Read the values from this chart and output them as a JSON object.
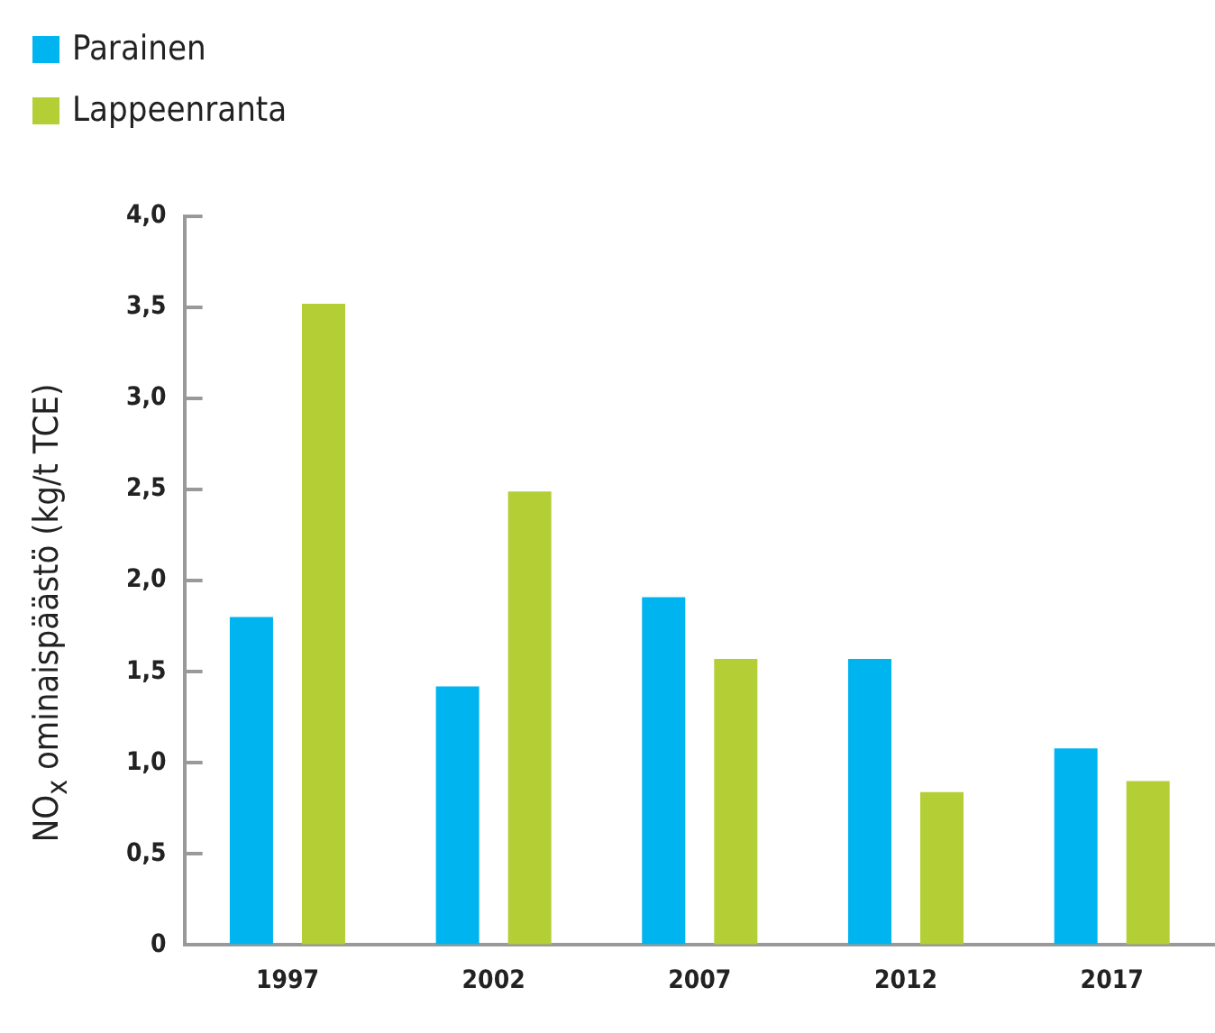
{
  "chart_data": {
    "type": "bar",
    "ylabel": "NO$_{x}$ ominaispäästö (kg/t TCE)",
    "categories": [
      "1997",
      "2002",
      "2007",
      "2012",
      "2017"
    ],
    "series": [
      {
        "name": "Parainen",
        "color": "#00b5ef",
        "values": [
          1.8,
          1.42,
          1.91,
          1.57,
          1.08
        ]
      },
      {
        "name": "Lappeenranta",
        "color": "#b3cf35",
        "values": [
          3.52,
          2.49,
          1.57,
          0.84,
          0.9
        ]
      }
    ],
    "ylim": [
      0,
      4
    ],
    "yticks": [
      {
        "value": 0,
        "label": "0"
      },
      {
        "value": 0.5,
        "label": "0,5"
      },
      {
        "value": 1,
        "label": "1,0"
      },
      {
        "value": 1.5,
        "label": "1,5"
      },
      {
        "value": 2,
        "label": "2,0"
      },
      {
        "value": 2.5,
        "label": "2,5"
      },
      {
        "value": 3,
        "label": "3,0"
      },
      {
        "value": 3.5,
        "label": "3,5"
      },
      {
        "value": 4,
        "label": "4,0"
      }
    ],
    "grid": false,
    "legend": "top left"
  }
}
